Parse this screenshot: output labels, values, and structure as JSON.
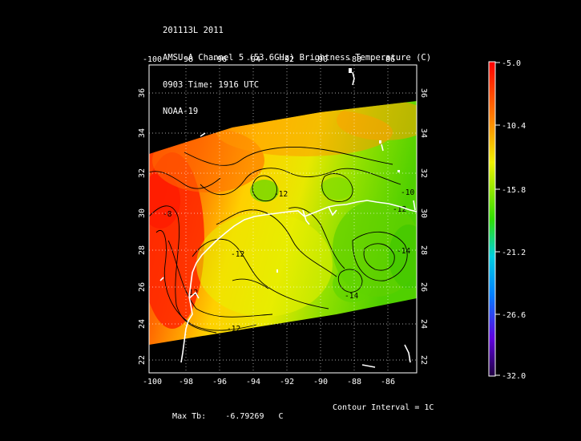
{
  "header": {
    "line1": "201113L 2011",
    "line2": "AMSU-A Channel 5 (53.6GHz) Brightness Temperature (C)",
    "line3": "0903 Time: 1916 UTC",
    "line4": "NOAA-19"
  },
  "map": {
    "lon_ticks": [
      "-100",
      "-98",
      "-96",
      "-94",
      "-92",
      "-90",
      "-88",
      "-86"
    ],
    "lat_ticks": [
      "22",
      "24",
      "26",
      "28",
      "30",
      "32",
      "34",
      "36"
    ],
    "lon_range": [
      -100,
      -84.5
    ],
    "lat_range": [
      21.5,
      37
    ],
    "contour_labels": [
      "-8",
      "-12",
      "-12",
      "-12",
      "-12",
      "-14",
      "-12",
      "-10",
      "-14"
    ],
    "colors": {
      "red": "#ff2000",
      "orange": "#ff8a00",
      "yellow": "#e8e800",
      "green": "#60d000",
      "border": "#ffffff"
    }
  },
  "colorbar": {
    "labels": [
      "-5.0",
      "-10.4",
      "-15.8",
      "-21.2",
      "-26.6",
      "-32.0"
    ],
    "range": [
      -32.0,
      -5.0
    ],
    "gradient": [
      "#ff0000",
      "#ff8000",
      "#f0f000",
      "#30e000",
      "#00d0e0",
      "#0080ff",
      "#6000e0",
      "#200040"
    ]
  },
  "footer": {
    "max_tb_label": "Max Tb:",
    "max_tb_value": "-6.79269",
    "max_tb_unit": "C",
    "contour_interval": "Contour Interval = 1C"
  }
}
